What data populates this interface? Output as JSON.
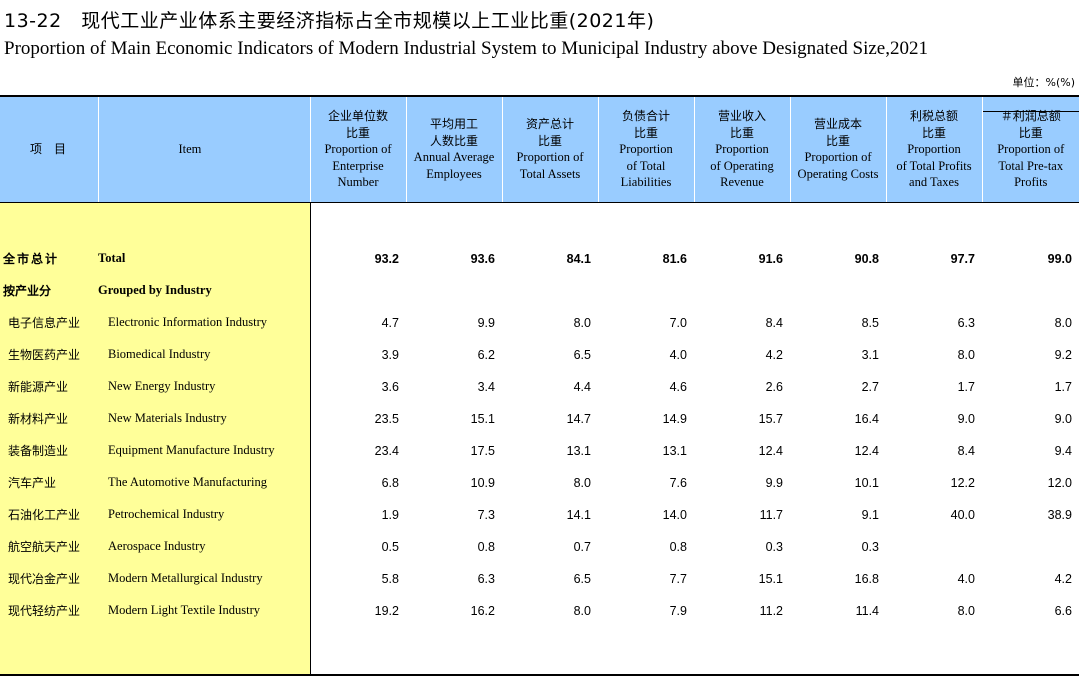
{
  "title_cn": "13-22　现代工业产业体系主要经济指标占全市规模以上工业比重(2021年)",
  "title_en": "Proportion of Main Economic Indicators of Modern Industrial System to Municipal  Industry above Designated Size,2021",
  "unit": "单位：%(%)",
  "header": {
    "item_cn": "项　目",
    "item_en": "Item",
    "columns": [
      {
        "cn": "企业单位数\n比重",
        "en": "Proportion of\nEnterprise\nNumber"
      },
      {
        "cn": "平均用工\n人数比重",
        "en": "Annual Average\nEmployees"
      },
      {
        "cn": "资产总计\n比重",
        "en": "Proportion of\nTotal Assets"
      },
      {
        "cn": "负债合计\n比重",
        "en": "Proportion\nof Total\nLiabilities"
      },
      {
        "cn": "营业收入\n比重",
        "en": "Proportion\nof Operating\nRevenue"
      },
      {
        "cn": "营业成本\n比重",
        "en": "Proportion of\nOperating Costs"
      },
      {
        "cn": "利税总额\n比重",
        "en": "Proportion\nof Total Profits\nand Taxes"
      },
      {
        "cn": "＃利润总额\n比重",
        "en": "Proportion of\nTotal Pre-tax\nProfits"
      }
    ]
  },
  "rows": [
    {
      "type": "total",
      "cn": "全市总计",
      "en": "Total",
      "values": [
        "93.2",
        "93.6",
        "84.1",
        "81.6",
        "91.6",
        "90.8",
        "97.7",
        "99.0"
      ]
    },
    {
      "type": "group",
      "cn": "按产业分",
      "en": "Grouped by Industry",
      "values": [
        "",
        "",
        "",
        "",
        "",
        "",
        "",
        ""
      ]
    },
    {
      "type": "item",
      "cn": "电子信息产业",
      "en": "Electronic Information Industry",
      "values": [
        "4.7",
        "9.9",
        "8.0",
        "7.0",
        "8.4",
        "8.5",
        "6.3",
        "8.0"
      ]
    },
    {
      "type": "item",
      "cn": "生物医药产业",
      "en": "Biomedical Industry",
      "values": [
        "3.9",
        "6.2",
        "6.5",
        "4.0",
        "4.2",
        "3.1",
        "8.0",
        "9.2"
      ]
    },
    {
      "type": "item",
      "cn": "新能源产业",
      "en": "New Energy Industry",
      "values": [
        "3.6",
        "3.4",
        "4.4",
        "4.6",
        "2.6",
        "2.7",
        "1.7",
        "1.7"
      ]
    },
    {
      "type": "item",
      "cn": "新材料产业",
      "en": "New Materials Industry",
      "values": [
        "23.5",
        "15.1",
        "14.7",
        "14.9",
        "15.7",
        "16.4",
        "9.0",
        "9.0"
      ]
    },
    {
      "type": "item",
      "cn": "装备制造业",
      "en": "Equipment Manufacture Industry",
      "values": [
        "23.4",
        "17.5",
        "13.1",
        "13.1",
        "12.4",
        "12.4",
        "8.4",
        "9.4"
      ]
    },
    {
      "type": "item",
      "cn": "汽车产业",
      "en": "The Automotive Manufacturing",
      "values": [
        "6.8",
        "10.9",
        "8.0",
        "7.6",
        "9.9",
        "10.1",
        "12.2",
        "12.0"
      ]
    },
    {
      "type": "item",
      "cn": "石油化工产业",
      "en": "Petrochemical Industry",
      "values": [
        "1.9",
        "7.3",
        "14.1",
        "14.0",
        "11.7",
        "9.1",
        "40.0",
        "38.9"
      ]
    },
    {
      "type": "item",
      "cn": "航空航天产业",
      "en": "Aerospace Industry",
      "values": [
        "0.5",
        "0.8",
        "0.7",
        "0.8",
        "0.3",
        "0.3",
        "",
        ""
      ]
    },
    {
      "type": "item",
      "cn": "现代冶金产业",
      "en": "Modern Metallurgical Industry",
      "values": [
        "5.8",
        "6.3",
        "6.5",
        "7.7",
        "15.1",
        "16.8",
        "4.0",
        "4.2"
      ]
    },
    {
      "type": "item",
      "cn": "现代轻纺产业",
      "en": "Modern Light Textile Industry",
      "values": [
        "19.2",
        "16.2",
        "8.0",
        "7.9",
        "11.2",
        "11.4",
        "8.0",
        "6.6"
      ]
    }
  ]
}
